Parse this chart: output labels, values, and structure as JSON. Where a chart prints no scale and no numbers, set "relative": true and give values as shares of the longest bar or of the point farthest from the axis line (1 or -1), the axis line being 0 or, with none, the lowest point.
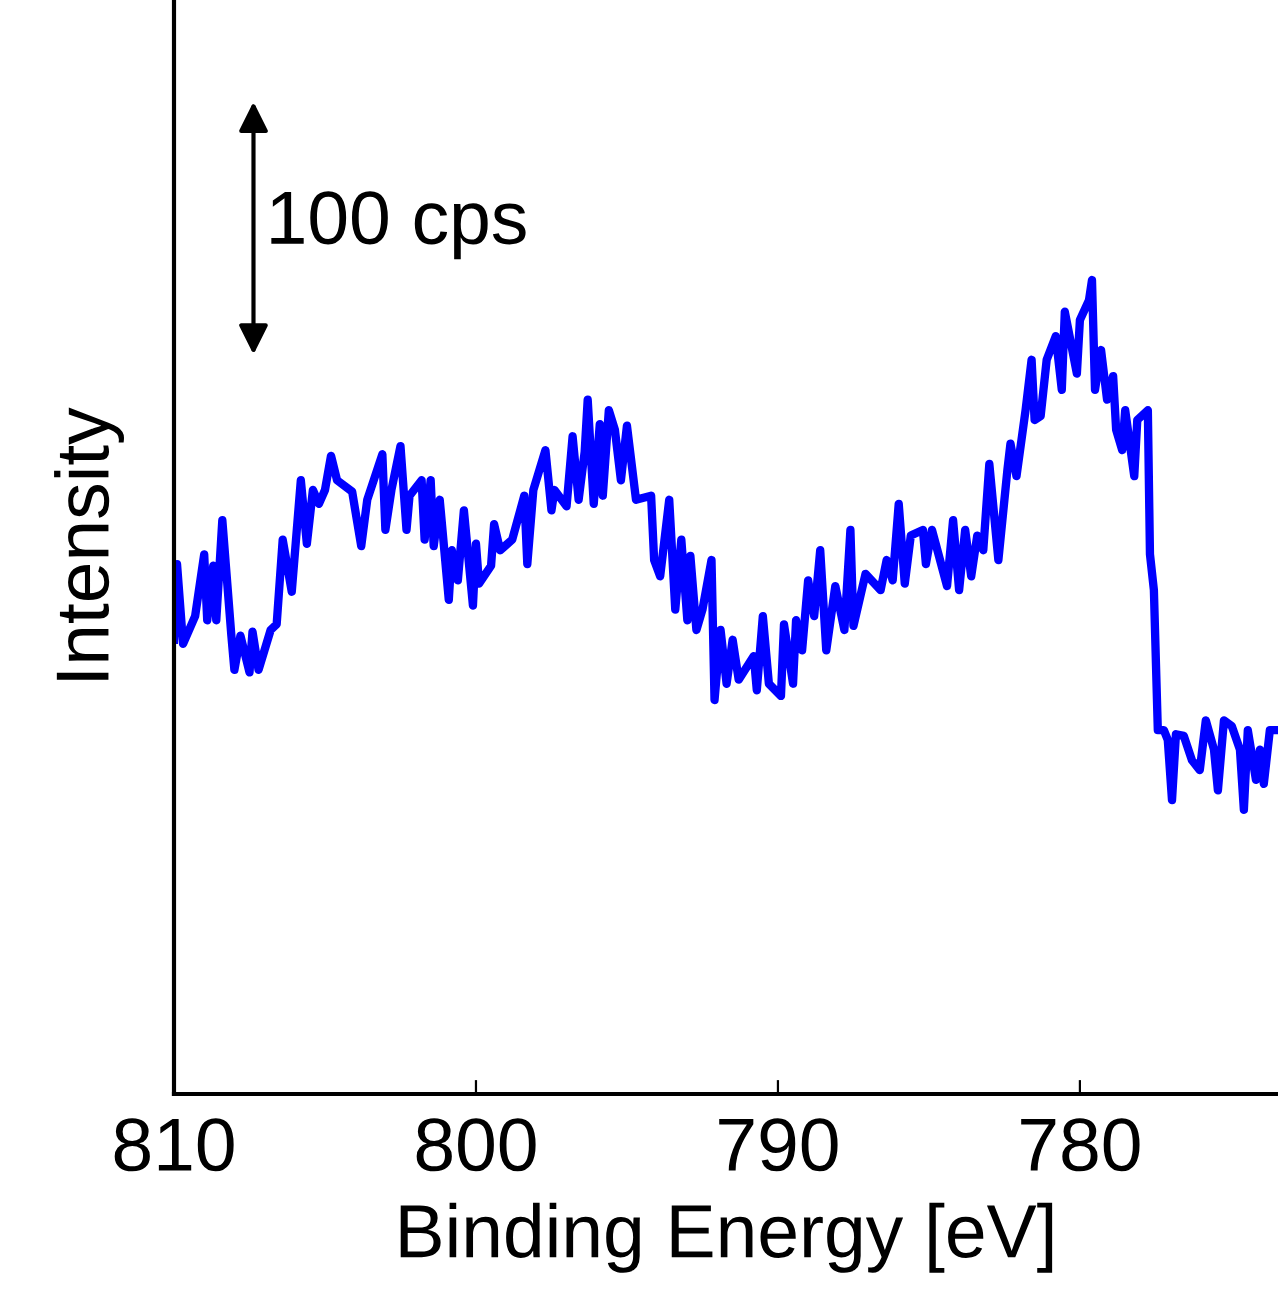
{
  "chart_data": {
    "type": "line",
    "relative": true,
    "xlabel": "Binding Energy [eV]",
    "ylabel": "Intensity",
    "xlim": [
      810,
      773.44
    ],
    "xticks": [
      810,
      800,
      790,
      780
    ],
    "grid": false,
    "legend": false,
    "marker": "none",
    "line_style": "solid",
    "annotations": [
      "100 cps"
    ],
    "series": [
      {
        "color": "#0000ff",
        "x": [
          810.0,
          809.9,
          809.7,
          809.3,
          809.0,
          808.9,
          808.7,
          808.6,
          808.4,
          808.1,
          808.0,
          807.8,
          807.5,
          807.4,
          807.2,
          806.8,
          806.6,
          806.4,
          806.1,
          805.8,
          805.6,
          805.4,
          805.2,
          805.0,
          804.8,
          804.6,
          804.1,
          803.8,
          803.6,
          803.1,
          803.0,
          802.8,
          802.5,
          802.3,
          802.2,
          801.8,
          801.7,
          801.5,
          801.4,
          801.2,
          800.9,
          800.8,
          800.6,
          800.4,
          800.1,
          800.0,
          799.9,
          799.5,
          799.4,
          799.2,
          798.8,
          798.4,
          798.3,
          798.1,
          797.7,
          797.5,
          797.4,
          797.0,
          796.8,
          796.6,
          796.4,
          796.3,
          796.1,
          795.9,
          795.8,
          795.6,
          795.4,
          795.2,
          795.0,
          794.7,
          794.2,
          794.1,
          793.9,
          793.6,
          793.4,
          793.2,
          793.0,
          792.9,
          792.7,
          792.5,
          792.2,
          792.1,
          791.9,
          791.7,
          791.5,
          791.3,
          790.8,
          790.7,
          790.5,
          790.3,
          789.9,
          789.8,
          789.5,
          789.4,
          789.2,
          789.0,
          788.8,
          788.6,
          788.4,
          788.1,
          787.8,
          787.6,
          787.5,
          787.1,
          786.6,
          786.4,
          786.2,
          786.0,
          785.8,
          785.6,
          785.2,
          785.1,
          784.9,
          784.4,
          784.2,
          784.0,
          783.8,
          783.6,
          783.4,
          783.2,
          783.0,
          782.7,
          782.4,
          782.3,
          782.1,
          781.8,
          781.6,
          781.5,
          781.3,
          781.1,
          780.8,
          780.6,
          780.5,
          780.1,
          780.0,
          779.7,
          779.6,
          779.5,
          779.3,
          779.1,
          778.9,
          778.8,
          778.6,
          778.5,
          778.2,
          778.1,
          777.75,
          777.68,
          777.55,
          777.42,
          777.22,
          777.09,
          776.95,
          776.82,
          776.56,
          776.29,
          776.03,
          775.83,
          775.56,
          775.43,
          775.23,
          774.97,
          774.7,
          774.57,
          774.44,
          774.17,
          774.04,
          773.91,
          773.71,
          773.44
        ],
        "values": [
          0.558,
          0.651,
          0.553,
          0.587,
          0.663,
          0.582,
          0.649,
          0.582,
          0.705,
          0.563,
          0.521,
          0.563,
          0.518,
          0.568,
          0.521,
          0.57,
          0.577,
          0.681,
          0.617,
          0.754,
          0.676,
          0.742,
          0.725,
          0.742,
          0.784,
          0.754,
          0.74,
          0.673,
          0.73,
          0.786,
          0.693,
          0.742,
          0.796,
          0.693,
          0.735,
          0.754,
          0.681,
          0.754,
          0.673,
          0.73,
          0.607,
          0.668,
          0.631,
          0.717,
          0.6,
          0.676,
          0.627,
          0.649,
          0.7,
          0.668,
          0.681,
          0.735,
          0.651,
          0.742,
          0.791,
          0.717,
          0.742,
          0.722,
          0.808,
          0.73,
          0.789,
          0.853,
          0.725,
          0.823,
          0.735,
          0.84,
          0.816,
          0.754,
          0.821,
          0.73,
          0.735,
          0.656,
          0.636,
          0.73,
          0.595,
          0.681,
          0.582,
          0.661,
          0.57,
          0.595,
          0.656,
          0.484,
          0.57,
          0.504,
          0.558,
          0.509,
          0.538,
          0.496,
          0.587,
          0.504,
          0.489,
          0.577,
          0.504,
          0.582,
          0.545,
          0.631,
          0.587,
          0.668,
          0.545,
          0.624,
          0.57,
          0.693,
          0.575,
          0.639,
          0.619,
          0.656,
          0.631,
          0.725,
          0.627,
          0.686,
          0.693,
          0.651,
          0.693,
          0.624,
          0.705,
          0.619,
          0.693,
          0.636,
          0.686,
          0.668,
          0.774,
          0.656,
          0.767,
          0.799,
          0.759,
          0.84,
          0.902,
          0.828,
          0.833,
          0.902,
          0.931,
          0.865,
          0.961,
          0.885,
          0.951,
          0.975,
          1.0,
          0.865,
          0.914,
          0.853,
          0.882,
          0.816,
          0.791,
          0.84,
          0.759,
          0.828,
          0.84,
          0.663,
          0.619,
          0.447,
          0.447,
          0.435,
          0.361,
          0.442,
          0.44,
          0.41,
          0.398,
          0.459,
          0.423,
          0.373,
          0.459,
          0.452,
          0.423,
          0.349,
          0.447,
          0.386,
          0.423,
          0.381,
          0.447,
          0.447
        ]
      }
    ]
  }
}
